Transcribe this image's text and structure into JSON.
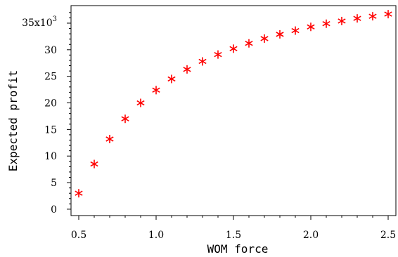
{
  "chart_data": {
    "type": "scatter",
    "title": "",
    "xlabel": "WOM force",
    "ylabel": "Expected profit",
    "y_scale_label": "x10",
    "y_scale_exponent": "3",
    "xlim": [
      0.45,
      2.55
    ],
    "ylim": [
      -1.2,
      38.3
    ],
    "xticks": [
      0.5,
      1.0,
      1.5,
      2.0,
      2.5
    ],
    "xtick_labels": [
      "0.5",
      "1.0",
      "1.5",
      "2.0",
      "2.5"
    ],
    "yticks": [
      0,
      5,
      10,
      15,
      20,
      25,
      30,
      35
    ],
    "ytick_labels": [
      "0",
      "5",
      "10",
      "15",
      "20",
      "25",
      "30",
      "35"
    ],
    "marker": "asterisk",
    "marker_color": "#ff0000",
    "grid": false,
    "series": [
      {
        "x": [
          0.5,
          0.6,
          0.7,
          0.8,
          0.9,
          1.0,
          1.1,
          1.2,
          1.3,
          1.4,
          1.5,
          1.6,
          1.7,
          1.8,
          1.9,
          2.0,
          2.1,
          2.2,
          2.3,
          2.4,
          2.5
        ],
        "y": [
          3.0,
          8.5,
          13.2,
          17.0,
          20.0,
          22.4,
          24.5,
          26.3,
          27.8,
          29.1,
          30.2,
          31.2,
          32.1,
          32.9,
          33.6,
          34.3,
          34.9,
          35.4,
          35.9,
          36.3,
          36.7
        ]
      }
    ]
  }
}
